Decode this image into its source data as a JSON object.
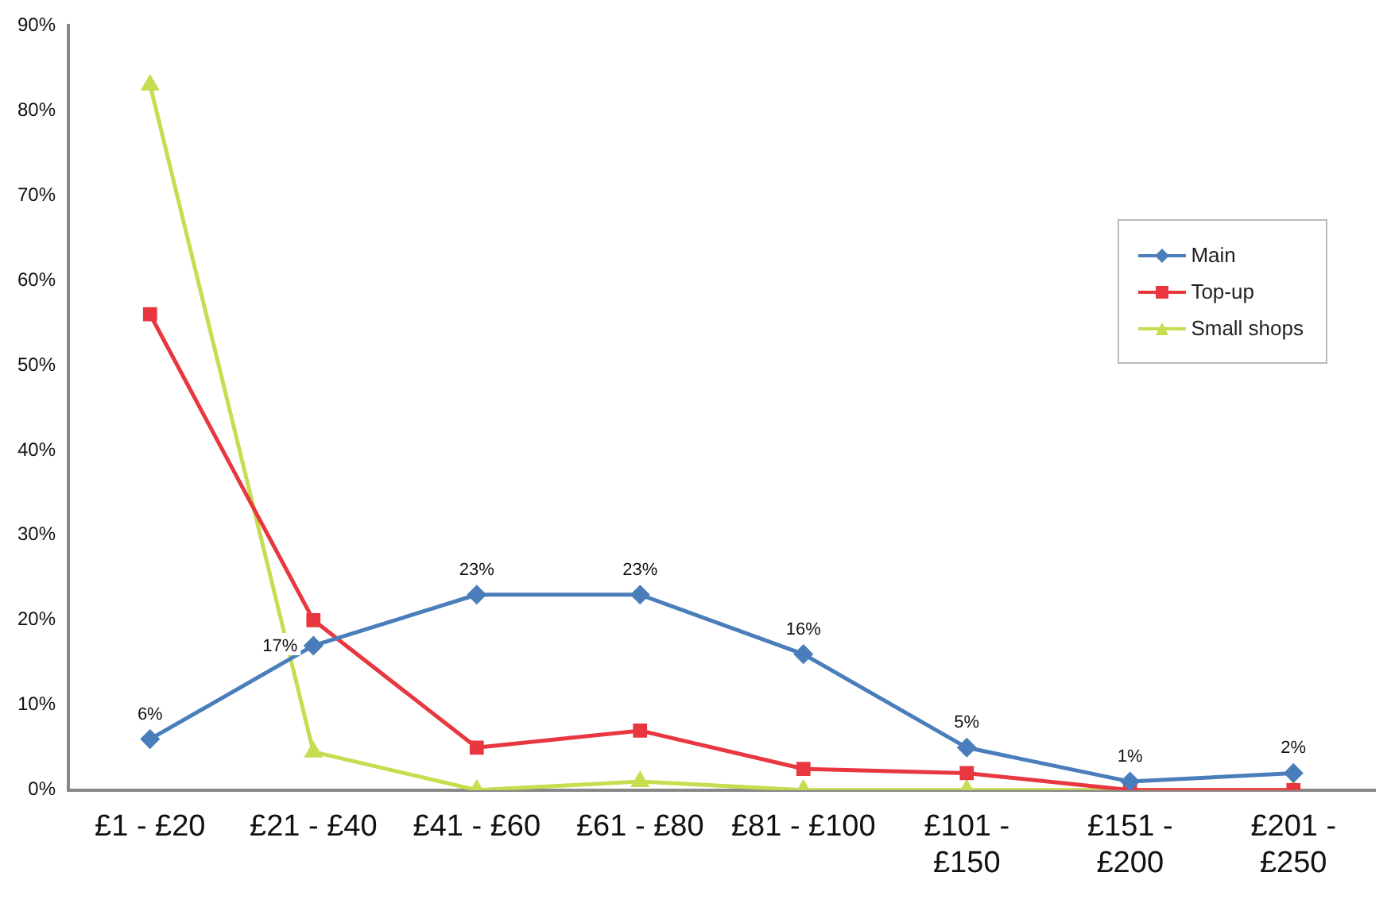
{
  "chart_data": {
    "type": "line",
    "categories": [
      "£1 - £20",
      "£21 - £40",
      "£41 - £60",
      "£61 - £80",
      "£81 - £100",
      "£101 - £150",
      "£151 - £200",
      "£201 - £250"
    ],
    "series": [
      {
        "name": "Main",
        "color": "#4a7ebb",
        "marker": "diamond",
        "values": [
          6,
          17,
          23,
          23,
          16,
          5,
          1,
          2
        ],
        "value_labels": [
          "6%",
          "17%",
          "23%",
          "23%",
          "16%",
          "5%",
          "1%",
          "2%"
        ]
      },
      {
        "name": "Top-up",
        "color": "#e8373f",
        "marker": "square",
        "values": [
          56,
          20,
          5,
          7,
          2.5,
          2,
          0,
          0
        ]
      },
      {
        "name": "Small shops",
        "color": "#c8dc50",
        "marker": "triangle",
        "values": [
          83,
          4.5,
          0,
          1,
          0,
          0,
          0,
          0
        ]
      }
    ],
    "ylim": [
      0,
      90
    ],
    "yticks": [
      {
        "value": 0,
        "label": "0%"
      },
      {
        "value": 10,
        "label": "10%"
      },
      {
        "value": 20,
        "label": "20%"
      },
      {
        "value": 30,
        "label": "30%"
      },
      {
        "value": 40,
        "label": "40%"
      },
      {
        "value": 50,
        "label": "50%"
      },
      {
        "value": 60,
        "label": "60%"
      },
      {
        "value": 70,
        "label": "70%"
      },
      {
        "value": 80,
        "label": "80%"
      },
      {
        "value": 90,
        "label": "90%"
      }
    ],
    "grid": false,
    "legend": "right"
  }
}
